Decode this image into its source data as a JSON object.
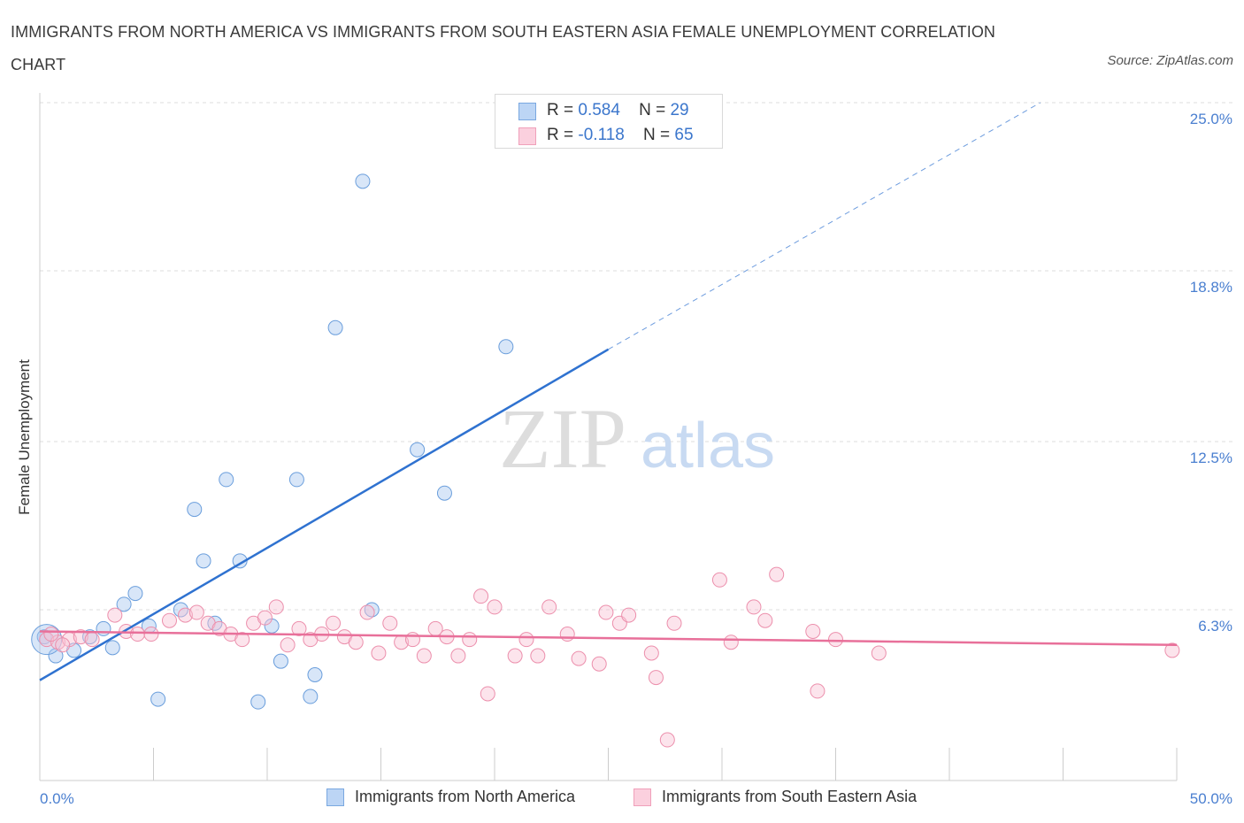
{
  "title": "IMMIGRANTS FROM NORTH AMERICA VS IMMIGRANTS FROM SOUTH EASTERN ASIA FEMALE UNEMPLOYMENT CORRELATION CHART",
  "source": "Source: ZipAtlas.com",
  "watermark": {
    "zip": "ZIP",
    "atlas": "atlas"
  },
  "legend": {
    "r_label": "R =",
    "n_label": "N =",
    "series": [
      {
        "r": "0.584",
        "n": "29"
      },
      {
        "r": "-0.118",
        "n": "65"
      }
    ]
  },
  "chart_data": {
    "type": "scatter",
    "xlabel": "",
    "ylabel": "Female Unemployment",
    "xlim": [
      0,
      50
    ],
    "ylim": [
      0,
      25
    ],
    "x_tick_labels": [
      "0.0%",
      "50.0%"
    ],
    "y_ticks": [
      6.3,
      12.5,
      18.8,
      25.0
    ],
    "y_tick_labels": [
      "6.3%",
      "12.5%",
      "18.8%",
      "25.0%"
    ],
    "grid": true,
    "legend_position": "top-center",
    "series": [
      {
        "name": "Immigrants from North America",
        "color": "#a8c8f0",
        "stroke": "#6a9edc",
        "trend_color": "#2f72d0",
        "trend": {
          "x0": 0,
          "y0": 3.7,
          "x1": 25,
          "y1": 15.9,
          "dashed_to_x": 44,
          "dashed_to_y": 25
        },
        "points": [
          [
            0.2,
            5.3
          ],
          [
            0.7,
            4.6
          ],
          [
            1.5,
            4.8
          ],
          [
            2.2,
            5.3
          ],
          [
            2.8,
            5.6
          ],
          [
            3.2,
            4.9
          ],
          [
            3.7,
            6.5
          ],
          [
            4.2,
            6.9
          ],
          [
            4.8,
            5.7
          ],
          [
            5.2,
            3.0
          ],
          [
            6.2,
            6.3
          ],
          [
            6.8,
            10.0
          ],
          [
            7.2,
            8.1
          ],
          [
            7.7,
            5.8
          ],
          [
            8.2,
            11.1
          ],
          [
            8.8,
            8.1
          ],
          [
            9.6,
            2.9
          ],
          [
            10.2,
            5.7
          ],
          [
            10.6,
            4.4
          ],
          [
            11.3,
            11.1
          ],
          [
            11.9,
            3.1
          ],
          [
            12.1,
            3.9
          ],
          [
            13.0,
            16.7
          ],
          [
            14.2,
            22.1
          ],
          [
            14.6,
            6.3
          ],
          [
            16.6,
            12.2
          ],
          [
            17.8,
            10.6
          ],
          [
            20.5,
            16.0
          ],
          [
            0.3,
            5.2
          ]
        ]
      },
      {
        "name": "Immigrants from South Eastern Asia",
        "color": "#f8c4d4",
        "stroke": "#ec8fac",
        "trend_color": "#e8709a",
        "trend": {
          "x0": 0,
          "y0": 5.5,
          "x1": 50,
          "y1": 5.0
        },
        "points": [
          [
            0.3,
            5.2
          ],
          [
            0.8,
            5.1
          ],
          [
            1.3,
            5.2
          ],
          [
            1.8,
            5.3
          ],
          [
            2.3,
            5.2
          ],
          [
            3.3,
            6.1
          ],
          [
            3.8,
            5.5
          ],
          [
            4.3,
            5.4
          ],
          [
            4.9,
            5.4
          ],
          [
            5.7,
            5.9
          ],
          [
            6.4,
            6.1
          ],
          [
            6.9,
            6.2
          ],
          [
            7.4,
            5.8
          ],
          [
            7.9,
            5.6
          ],
          [
            8.4,
            5.4
          ],
          [
            8.9,
            5.2
          ],
          [
            9.4,
            5.8
          ],
          [
            9.9,
            6.0
          ],
          [
            10.4,
            6.4
          ],
          [
            10.9,
            5.0
          ],
          [
            11.4,
            5.6
          ],
          [
            11.9,
            5.2
          ],
          [
            12.4,
            5.4
          ],
          [
            12.9,
            5.8
          ],
          [
            13.4,
            5.3
          ],
          [
            13.9,
            5.1
          ],
          [
            14.4,
            6.2
          ],
          [
            14.9,
            4.7
          ],
          [
            15.4,
            5.8
          ],
          [
            15.9,
            5.1
          ],
          [
            16.4,
            5.2
          ],
          [
            16.9,
            4.6
          ],
          [
            17.4,
            5.6
          ],
          [
            17.9,
            5.3
          ],
          [
            18.4,
            4.6
          ],
          [
            18.9,
            5.2
          ],
          [
            19.4,
            6.8
          ],
          [
            19.7,
            3.2
          ],
          [
            20.0,
            6.4
          ],
          [
            20.9,
            4.6
          ],
          [
            21.4,
            5.2
          ],
          [
            21.9,
            4.6
          ],
          [
            22.4,
            6.4
          ],
          [
            23.2,
            5.4
          ],
          [
            23.7,
            4.5
          ],
          [
            24.6,
            4.3
          ],
          [
            24.9,
            6.2
          ],
          [
            25.5,
            5.8
          ],
          [
            25.9,
            6.1
          ],
          [
            26.9,
            4.7
          ],
          [
            27.1,
            3.8
          ],
          [
            27.6,
            1.5
          ],
          [
            27.9,
            5.8
          ],
          [
            29.9,
            7.4
          ],
          [
            30.4,
            5.1
          ],
          [
            31.4,
            6.4
          ],
          [
            31.9,
            5.9
          ],
          [
            32.4,
            7.6
          ],
          [
            34.0,
            5.5
          ],
          [
            34.2,
            3.3
          ],
          [
            35.0,
            5.2
          ],
          [
            36.9,
            4.7
          ],
          [
            49.8,
            4.8
          ],
          [
            0.5,
            5.4
          ],
          [
            1.0,
            5.0
          ]
        ]
      }
    ]
  },
  "bottom_legend": [
    {
      "label": "Immigrants from North America"
    },
    {
      "label": "Immigrants from South Eastern Asia"
    }
  ]
}
